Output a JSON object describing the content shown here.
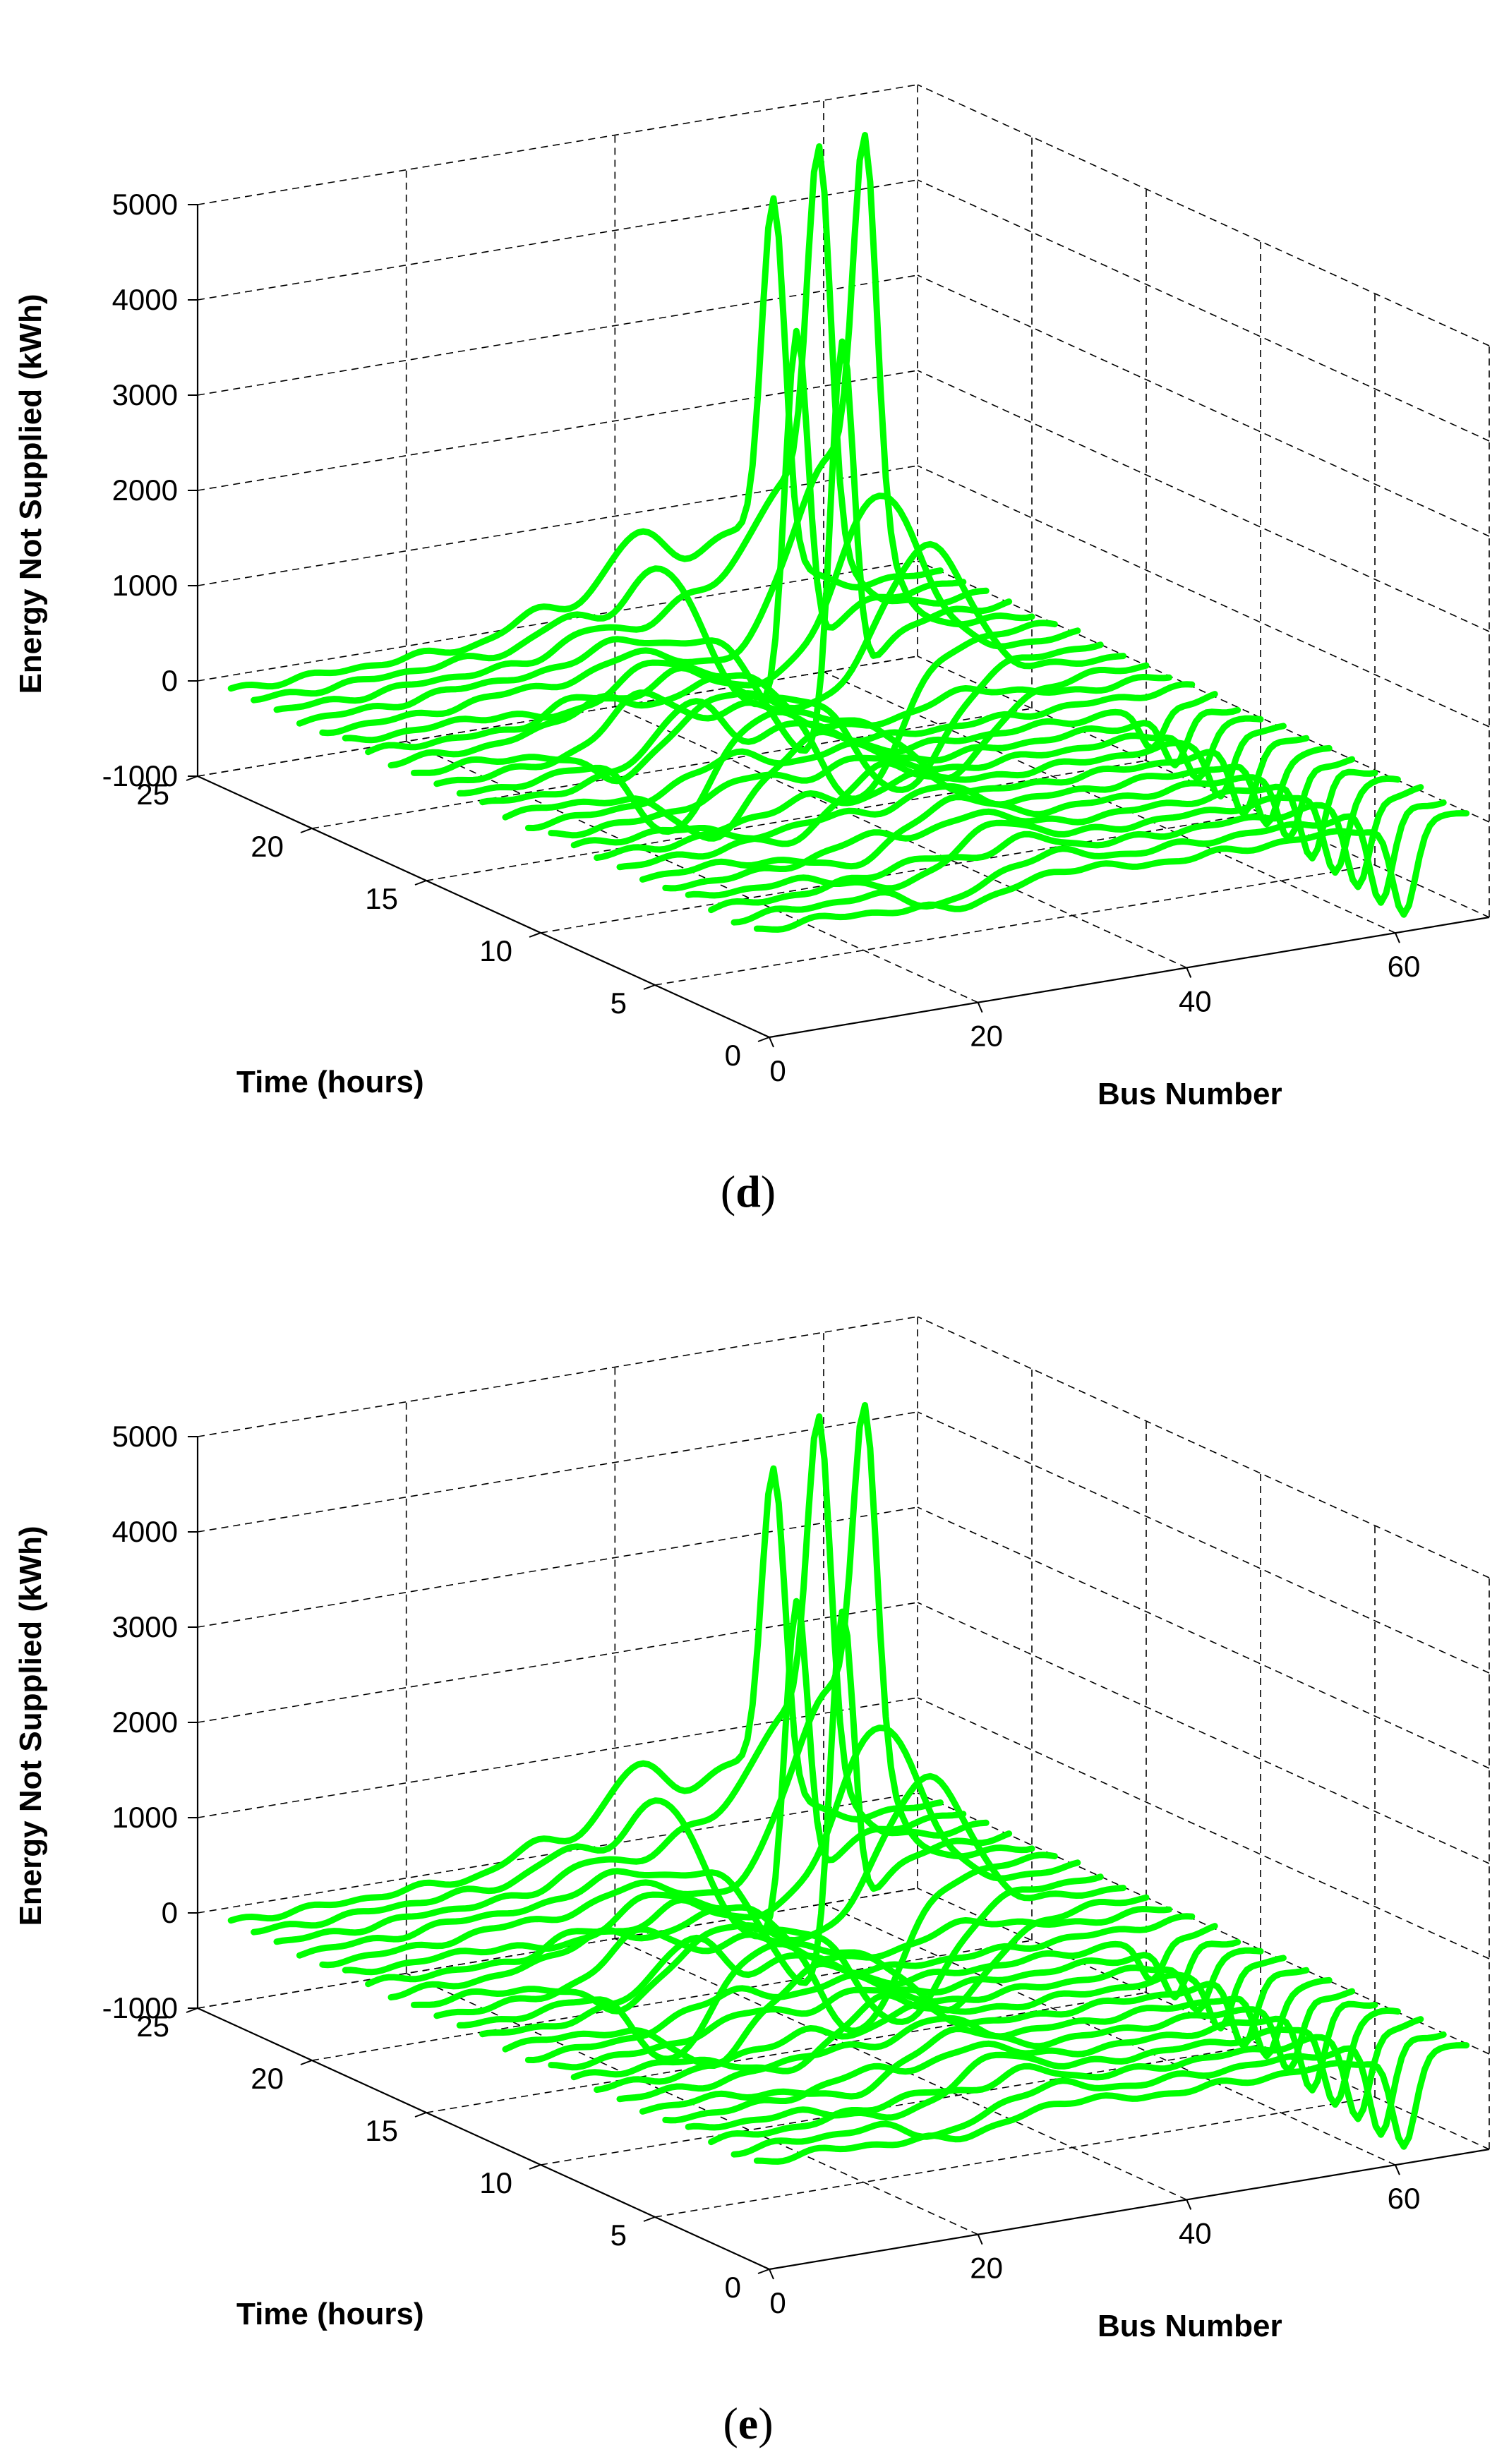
{
  "chart_data": [
    {
      "type": "3d-line",
      "panel_label": "(d)",
      "panel_letter": "d",
      "zlabel": "Energy Not Supplied (kWh)",
      "ylabel": "Time (hours)",
      "xlabel": "Bus Number",
      "x_ticks": [
        "0",
        "20",
        "40",
        "60"
      ],
      "y_ticks": [
        "0",
        "5",
        "10",
        "15",
        "20",
        "25"
      ],
      "z_ticks": [
        "-1000",
        "0",
        "1000",
        "2000",
        "3000",
        "4000",
        "5000"
      ],
      "xlim": [
        0,
        69
      ],
      "ylim": [
        0,
        25
      ],
      "zlim": [
        -1000,
        5000
      ],
      "hours": [
        1,
        2,
        3,
        4,
        5,
        6,
        7,
        8,
        9,
        10,
        11,
        12,
        13,
        14,
        15,
        16,
        17,
        18,
        19,
        20,
        21,
        22,
        23,
        24
      ],
      "series_color": "#00ff00",
      "features": [
        {
          "bus": 15,
          "width": 2.5,
          "amplitude": [
            -40,
            20,
            40,
            -30,
            30,
            -60,
            50,
            80,
            -40,
            60,
            100,
            -80,
            90,
            120,
            60,
            -60,
            40,
            -40,
            30,
            20,
            40,
            30,
            20,
            10
          ]
        },
        {
          "bus": 21,
          "width": 3,
          "amplitude": [
            -100,
            -200,
            150,
            -250,
            200,
            -220,
            180,
            250,
            -350,
            280,
            400,
            -600,
            700,
            -800,
            600,
            -400,
            300,
            200,
            -100,
            100,
            80,
            50,
            50,
            30
          ]
        },
        {
          "bus": 31,
          "width": 3,
          "amplitude": [
            100,
            150,
            200,
            250,
            250,
            300,
            300,
            300,
            300,
            300,
            300,
            300,
            300,
            300,
            300,
            300,
            300,
            300,
            300,
            300,
            300,
            300,
            300,
            300
          ]
        },
        {
          "bus": 40,
          "width": 3,
          "amplitude": [
            0,
            0,
            0,
            0,
            0,
            0,
            0,
            0,
            0,
            0,
            0,
            0,
            0,
            0,
            0,
            0,
            0,
            0,
            0,
            0,
            200,
            400,
            700,
            900
          ]
        },
        {
          "bus": 50,
          "width": 4,
          "amplitude": [
            0,
            0,
            0,
            0,
            0,
            0,
            0,
            0,
            0,
            0,
            0,
            0,
            0,
            200,
            -800,
            1500,
            -1200,
            1800,
            -1500,
            2000,
            -1200,
            1500,
            -1000,
            800
          ]
        },
        {
          "bus": 53,
          "width": 1.1,
          "amplitude": [
            0,
            0,
            0,
            0,
            0,
            0,
            0,
            0,
            0,
            0,
            0,
            0,
            0,
            0,
            0,
            0,
            0,
            0,
            0,
            3800,
            3900,
            3850,
            3700,
            3600
          ]
        },
        {
          "bus": 63,
          "width": 1.1,
          "amplitude": [
            -1000,
            -950,
            -900,
            -850,
            -800,
            -750,
            -700,
            -650,
            -600,
            -550,
            -500,
            -450,
            0,
            0,
            0,
            0,
            0,
            0,
            0,
            0,
            0,
            0,
            0,
            0
          ]
        }
      ]
    },
    {
      "type": "3d-line",
      "panel_label": "(e)",
      "panel_letter": "e",
      "zlabel": "Energy Not Supplied (kWh)",
      "ylabel": "Time (hours)",
      "xlabel": "Bus Number",
      "x_ticks": [
        "0",
        "20",
        "40",
        "60"
      ],
      "y_ticks": [
        "0",
        "5",
        "10",
        "15",
        "20",
        "25"
      ],
      "z_ticks": [
        "-1000",
        "0",
        "1000",
        "2000",
        "3000",
        "4000",
        "5000"
      ],
      "xlim": [
        0,
        69
      ],
      "ylim": [
        0,
        25
      ],
      "zlim": [
        -1000,
        5000
      ],
      "hours": [
        1,
        2,
        3,
        4,
        5,
        6,
        7,
        8,
        9,
        10,
        11,
        12,
        13,
        14,
        15,
        16,
        17,
        18,
        19,
        20,
        21,
        22,
        23,
        24
      ],
      "series_color": "#00ff00",
      "features": [
        {
          "bus": 15,
          "width": 2.5,
          "amplitude": [
            -40,
            20,
            40,
            -30,
            30,
            -60,
            50,
            80,
            -40,
            60,
            100,
            -80,
            90,
            120,
            60,
            -60,
            40,
            -40,
            30,
            20,
            40,
            30,
            20,
            10
          ]
        },
        {
          "bus": 21,
          "width": 3,
          "amplitude": [
            -80,
            -180,
            130,
            -220,
            180,
            -200,
            160,
            220,
            -300,
            250,
            350,
            -550,
            650,
            -750,
            550,
            -380,
            280,
            180,
            -90,
            90,
            70,
            50,
            40,
            30
          ]
        },
        {
          "bus": 31,
          "width": 3,
          "amplitude": [
            100,
            150,
            200,
            250,
            250,
            300,
            300,
            300,
            300,
            300,
            300,
            300,
            300,
            300,
            300,
            300,
            300,
            300,
            300,
            300,
            300,
            300,
            300,
            300
          ]
        },
        {
          "bus": 40,
          "width": 3,
          "amplitude": [
            0,
            0,
            0,
            0,
            0,
            0,
            0,
            0,
            0,
            0,
            0,
            0,
            0,
            0,
            0,
            0,
            0,
            0,
            0,
            0,
            200,
            400,
            700,
            900
          ]
        },
        {
          "bus": 50,
          "width": 4,
          "amplitude": [
            0,
            0,
            0,
            0,
            0,
            0,
            0,
            0,
            0,
            0,
            0,
            0,
            0,
            200,
            -800,
            1500,
            -1200,
            1800,
            -1500,
            2000,
            -1200,
            1500,
            -1000,
            800
          ]
        },
        {
          "bus": 53,
          "width": 1.1,
          "amplitude": [
            0,
            0,
            0,
            0,
            0,
            0,
            0,
            0,
            0,
            0,
            0,
            0,
            0,
            0,
            0,
            0,
            0,
            0,
            0,
            3400,
            3500,
            3450,
            3300,
            3200
          ]
        },
        {
          "bus": 63,
          "width": 1.1,
          "amplitude": [
            -1000,
            -950,
            -900,
            -850,
            -800,
            -750,
            -700,
            -650,
            -600,
            -550,
            -500,
            -450,
            0,
            0,
            0,
            0,
            0,
            0,
            0,
            0,
            0,
            0,
            0,
            0
          ]
        }
      ]
    }
  ]
}
